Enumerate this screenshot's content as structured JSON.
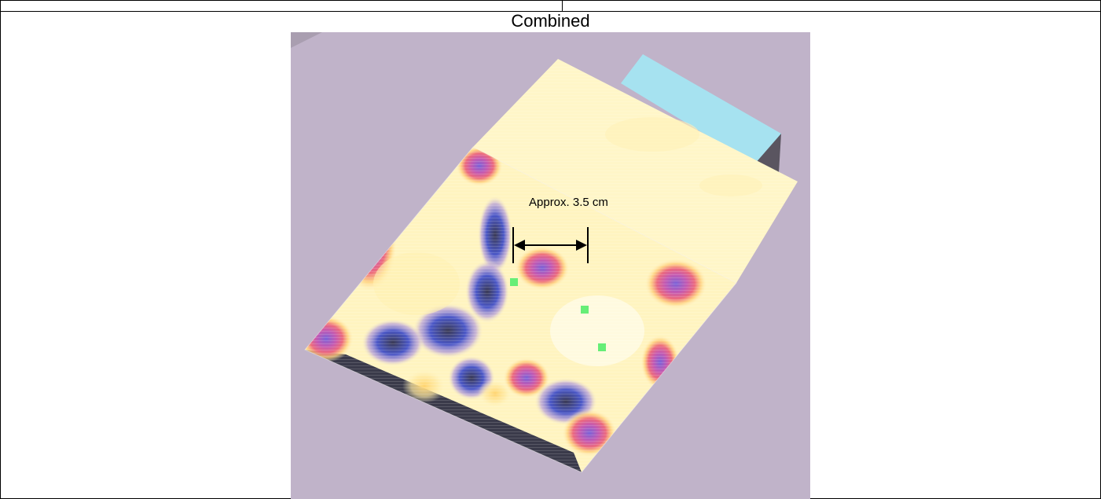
{
  "caption": {
    "title": "Combined"
  },
  "figure": {
    "annotation": "Approx. 3.5 cm",
    "colors": {
      "background": "#c0b3c9",
      "upper_sheet": "#fff6c8",
      "block_top": "#a6e2f0",
      "block_side": "#5a5560",
      "heat_low": "#fffbe0",
      "heat_mid": "#ffd27a",
      "heat_high": "#e24a7a",
      "heat_max": "#6d5bd1",
      "marker": "#66ee77"
    }
  }
}
